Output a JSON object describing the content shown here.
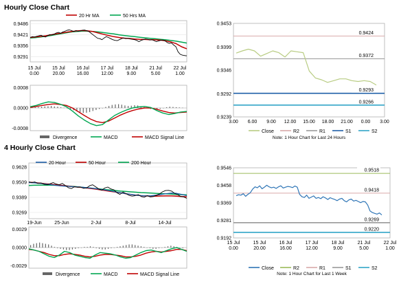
{
  "sections": [
    {
      "title": "Hourly Close Chart"
    },
    {
      "title": "4 Hourly Close Chart"
    }
  ],
  "colors": {
    "price_line": "#000000",
    "ma_red": "#c00000",
    "ma_green": "#00a651",
    "divergence": "#666666",
    "close_green": "#b8cc82",
    "close_blue": "#2e75b6",
    "r_line": "#d9a8a8",
    "r_line_alt": "#999999",
    "s1_blue": "#1f5fa8",
    "s2_blue": "#31a5c7",
    "r2_green": "#9bbb59"
  },
  "chart_data": [
    {
      "id": "hourly-price",
      "type": "line",
      "legend": [
        "20 Hr MA",
        "50 Hrs MA"
      ],
      "y_ticks": [
        "0.9486",
        "0.9421",
        "0.9356",
        "0.9291"
      ],
      "ylim": [
        0.926,
        0.9505
      ],
      "x_ticks": [
        [
          "15 Jul",
          "0.00"
        ],
        [
          "15 Jul",
          "20.00"
        ],
        [
          "16 Jul",
          "16.00"
        ],
        [
          "17 Jul",
          "12.00"
        ],
        [
          "18 Jul",
          "9.00"
        ],
        [
          "21 Jul",
          "5.00"
        ],
        [
          "22 Jul",
          "1.00"
        ]
      ],
      "series": [
        {
          "name": "Price",
          "values": [
            0.9405,
            0.941,
            0.9408,
            0.9412,
            0.9415,
            0.9418,
            0.9412,
            0.9408,
            0.9415,
            0.9422,
            0.942,
            0.9425,
            0.9432,
            0.9435,
            0.943,
            0.9438,
            0.9442,
            0.9448,
            0.945,
            0.9446,
            0.944,
            0.9446,
            0.9442,
            0.9444,
            0.9448,
            0.9449,
            0.9445,
            0.944,
            0.943,
            0.942,
            0.941,
            0.94,
            0.9398,
            0.9392,
            0.9402,
            0.941,
            0.9405,
            0.9398,
            0.9392,
            0.9388,
            0.9386,
            0.9392,
            0.9398,
            0.9402,
            0.9398,
            0.94,
            0.9396,
            0.9394,
            0.9392,
            0.9388,
            0.938,
            0.9388,
            0.9392,
            0.9396,
            0.9394,
            0.939,
            0.9392,
            0.9386,
            0.938,
            0.9384,
            0.9388,
            0.939,
            0.9385,
            0.9375,
            0.937,
            0.9372,
            0.936,
            0.935,
            0.932,
            0.9305,
            0.93,
            0.9298,
            0.9296
          ]
        },
        {
          "name": "20 Hr MA",
          "values": [
            0.9405,
            0.9408,
            0.9411,
            0.9415,
            0.9421,
            0.9426,
            0.9431,
            0.9437,
            0.9441,
            0.9444,
            0.9446,
            0.9444,
            0.944,
            0.9432,
            0.9424,
            0.9417,
            0.941,
            0.9405,
            0.9401,
            0.9399,
            0.9396,
            0.9394,
            0.9393,
            0.9392,
            0.9391,
            0.9389,
            0.9385,
            0.9378,
            0.9368,
            0.935,
            0.9338
          ]
        },
        {
          "name": "50 Hrs MA",
          "values": [
            0.9402,
            0.9404,
            0.9408,
            0.9412,
            0.9417,
            0.9422,
            0.9428,
            0.9433,
            0.9438,
            0.9441,
            0.9443,
            0.9443,
            0.9441,
            0.9438,
            0.9434,
            0.943,
            0.9426,
            0.9421,
            0.9417,
            0.9413,
            0.941,
            0.9406,
            0.9403,
            0.94,
            0.9397,
            0.9394,
            0.9391,
            0.9387,
            0.9383,
            0.9377,
            0.9372
          ]
        }
      ]
    },
    {
      "id": "hourly-macd",
      "type": "bar",
      "legend": [
        "Divergence",
        "MACD",
        "MACD Signal Line"
      ],
      "y_ticks": [
        "0.0008",
        "0.0000",
        "-0.0008"
      ],
      "ylim": [
        -0.0009,
        0.0009
      ],
      "series": [
        {
          "name": "Divergence",
          "values": [
            2e-05,
            3e-05,
            4e-05,
            5e-05,
            6e-05,
            7e-05,
            8e-05,
            6e-05,
            5e-05,
            3e-05,
            1e-05,
            -2e-05,
            -5e-05,
            -9e-05,
            -0.00013,
            -0.00017,
            -0.0002,
            -0.00019,
            -0.00016,
            -0.00012,
            -8e-05,
            -4e-05,
            0.0,
            4e-05,
            8e-05,
            0.00012,
            0.00014,
            0.00015,
            0.00013,
            0.0001,
            8e-05,
            9e-05,
            0.00011,
            0.0001,
            7e-05,
            3e-05,
            -1e-05,
            -4e-05,
            -6e-05,
            -5e-05,
            -3e-05,
            0.0,
            3e-05,
            5e-05,
            4e-05,
            3e-05,
            2e-05,
            1e-05
          ]
        },
        {
          "name": "MACD",
          "values": [
            5e-05,
            0.0001,
            0.00018,
            0.00024,
            0.00022,
            0.00015,
            5e-05,
            -0.00012,
            -0.00032,
            -0.00048,
            -0.00062,
            -0.0007,
            -0.00066,
            -0.00048,
            -0.0003,
            -0.00018,
            -8e-05,
            0.0,
            4e-05,
            6e-05,
            2e-05,
            -0.0001,
            -0.0002,
            -0.00026,
            -0.00022,
            -0.00016,
            -0.00014
          ]
        },
        {
          "name": "MACD Signal Line",
          "values": [
            2e-05,
            6e-05,
            0.0001,
            0.00014,
            0.00016,
            0.00014,
            0.0001,
            0.0,
            -0.00015,
            -0.0003,
            -0.00044,
            -0.00054,
            -0.00058,
            -0.00052,
            -0.0004,
            -0.00028,
            -0.00018,
            -0.0001,
            -4e-05,
            0.0,
            0.0,
            -5e-05,
            -0.00012,
            -0.00018,
            -0.0002,
            -0.00018,
            -0.00016
          ]
        }
      ]
    },
    {
      "id": "hourly-24h",
      "type": "line",
      "legend": [
        "Close",
        "R2",
        "R1",
        "S1",
        "S2"
      ],
      "note": "Note: 1 Hour Chart for Last 24 Hours",
      "y_ticks": [
        "0.9453",
        "0.9399",
        "0.9346",
        "0.9292",
        "0.9239"
      ],
      "ylim": [
        0.9239,
        0.9453
      ],
      "x_ticks": [
        "3.00",
        "6.00",
        "9.00",
        "12.00",
        "15.00",
        "18.00",
        "21.00",
        "0.00",
        "3.00"
      ],
      "levels": [
        {
          "name": "R2",
          "value": 0.9424,
          "label": "0.9424"
        },
        {
          "name": "R1",
          "value": 0.9372,
          "label": "0.9372"
        },
        {
          "name": "S1",
          "value": 0.9293,
          "label": "0.9293"
        },
        {
          "name": "S2",
          "value": 0.9266,
          "label": "0.9266"
        }
      ],
      "series": [
        {
          "name": "Close",
          "values": [
            0.9385,
            0.939,
            0.9394,
            0.939,
            0.9378,
            0.9384,
            0.939,
            0.9386,
            0.9376,
            0.939,
            0.9388,
            0.9386,
            0.9344,
            0.9328,
            0.9324,
            0.9318,
            0.9322,
            0.9326,
            0.9326,
            0.9322,
            0.932,
            0.9322,
            0.932,
            0.9312
          ]
        }
      ]
    },
    {
      "id": "four-hourly-price",
      "type": "line",
      "legend": [
        "20 Hour",
        "50 Hour",
        "200 Hour"
      ],
      "y_ticks": [
        "0.9628",
        "0.9509",
        "0.9389",
        "0.9269"
      ],
      "ylim": [
        0.922,
        0.966
      ],
      "x_ticks": [
        "19-Jun",
        "25-Jun",
        "2-Jul",
        "8-Jul",
        "14-Jul"
      ],
      "series": [
        {
          "name": "Price",
          "values": [
            0.951,
            0.9505,
            0.951,
            0.9498,
            0.9502,
            0.9492,
            0.9488,
            0.9496,
            0.9505,
            0.9494,
            0.9488,
            0.9498,
            0.9482,
            0.9465,
            0.9458,
            0.9472,
            0.9468,
            0.947,
            0.946,
            0.9462,
            0.948,
            0.9488,
            0.9472,
            0.9455,
            0.9445,
            0.9462,
            0.947,
            0.9455,
            0.9448,
            0.9425,
            0.9412,
            0.943,
            0.9418,
            0.9404,
            0.9398,
            0.9402,
            0.941,
            0.9395,
            0.939,
            0.9402,
            0.9392,
            0.9395,
            0.9405,
            0.9415,
            0.9432,
            0.9442,
            0.9444,
            0.9438,
            0.942,
            0.941,
            0.9395,
            0.9392,
            0.938
          ]
        },
        {
          "name": "20 Hour",
          "values": [
            0.9505,
            0.9503,
            0.95,
            0.9495,
            0.949,
            0.9485,
            0.948,
            0.9477,
            0.9475,
            0.9472,
            0.947,
            0.9466,
            0.9462,
            0.9458,
            0.9452,
            0.9446,
            0.944,
            0.9432,
            0.9425,
            0.9418,
            0.9412,
            0.9406,
            0.9402,
            0.94,
            0.9401,
            0.9406,
            0.9412,
            0.9418,
            0.9422,
            0.942,
            0.9412,
            0.9402
          ]
        },
        {
          "name": "50 Hour",
          "values": [
            0.9508,
            0.9505,
            0.9501,
            0.9497,
            0.9493,
            0.9489,
            0.9485,
            0.948,
            0.9476,
            0.9472,
            0.9468,
            0.9464,
            0.9459,
            0.9454,
            0.9448,
            0.9442,
            0.9436,
            0.943,
            0.9424,
            0.9418,
            0.9412,
            0.9406,
            0.9402,
            0.94,
            0.9398,
            0.9398,
            0.9399,
            0.94,
            0.94,
            0.9398,
            0.9395,
            0.9392
          ]
        },
        {
          "name": "200 Hour",
          "values": [
            0.9482,
            0.9484,
            0.9485,
            0.9485,
            0.9485,
            0.9484,
            0.9482,
            0.948,
            0.9477,
            0.9474,
            0.947,
            0.9466,
            0.9462,
            0.9458,
            0.9454,
            0.945,
            0.9446,
            0.9442,
            0.9438,
            0.9435,
            0.9432,
            0.9429,
            0.9426,
            0.9424,
            0.9422,
            0.942,
            0.9418,
            0.9416,
            0.9414,
            0.9412,
            0.941,
            0.9408
          ]
        }
      ]
    },
    {
      "id": "four-hourly-macd",
      "type": "bar",
      "legend": [
        "Divergence",
        "MACD",
        "MACD Signal Line"
      ],
      "y_ticks": [
        "0.0029",
        "0.0000",
        "-0.0029"
      ],
      "ylim": [
        -0.0033,
        0.0033
      ],
      "series": [
        {
          "name": "Divergence",
          "values": [
            0.0004,
            0.0006,
            0.0007,
            0.0008,
            0.0007,
            0.0006,
            0.0005,
            0.0003,
            0.0001,
            -0.0001,
            -0.0002,
            -0.0003,
            -0.0004,
            -0.0004,
            -0.0003,
            -0.0002,
            -0.0001,
            0.0,
            0.0001,
            0.0001,
            0.0002,
            0.0001,
            -0.0001,
            -0.0002,
            -0.0003,
            -0.0003,
            -0.0002,
            -0.0001,
            0.0,
            0.0001,
            0.0002,
            0.0003,
            0.0004,
            0.0005,
            0.0005,
            0.0004,
            0.0003,
            0.0002,
            0.0001,
            0.0,
            -0.0001,
            -0.0002,
            -0.0002,
            -0.0001,
            0.0,
            0.0001,
            0.0002,
            0.0003,
            0.0002,
            0.0001,
            0.0,
            -0.0001
          ]
        },
        {
          "name": "MACD",
          "values": [
            -0.0002,
            -0.0004,
            -0.0006,
            -0.001,
            -0.0014,
            -0.0016,
            -0.0012,
            -0.0006,
            -0.0008,
            -0.0012,
            -0.0014,
            -0.0016,
            -0.0017,
            -0.0012,
            -0.0008,
            -0.0009,
            -0.001,
            -0.0012,
            -0.0015,
            -0.0017,
            -0.0016,
            -0.0012,
            -0.0008,
            -0.0005,
            -0.0004,
            -0.0006,
            -0.0008,
            -0.0005,
            -0.0002,
            0.0,
            -0.0003,
            -0.0006
          ]
        },
        {
          "name": "MACD Signal Line",
          "values": [
            -0.0003,
            -0.0004,
            -0.0006,
            -0.0008,
            -0.0011,
            -0.0013,
            -0.0013,
            -0.0011,
            -0.001,
            -0.0011,
            -0.0012,
            -0.0014,
            -0.0015,
            -0.0014,
            -0.0012,
            -0.0011,
            -0.0011,
            -0.0012,
            -0.0013,
            -0.0015,
            -0.0015,
            -0.0014,
            -0.0012,
            -0.0009,
            -0.0007,
            -0.0006,
            -0.0007,
            -0.0006,
            -0.0005,
            -0.0003,
            -0.0003,
            -0.0005
          ]
        }
      ]
    },
    {
      "id": "weekly-hourly",
      "type": "line",
      "legend": [
        "Close",
        "R2",
        "R1",
        "S1",
        "S2"
      ],
      "note": "Note: 1 Hour Chart for Last 1 Week",
      "y_ticks": [
        "0.9546",
        "0.9458",
        "0.9369",
        "0.9281",
        "0.9192"
      ],
      "ylim": [
        0.9192,
        0.9546
      ],
      "x_ticks": [
        [
          "15 Jul",
          "0.00"
        ],
        [
          "15 Jul",
          "20.00"
        ],
        [
          "16 Jul",
          "16.00"
        ],
        [
          "17 Jul",
          "12.00"
        ],
        [
          "18 Jul",
          "9.00"
        ],
        [
          "21 Jul",
          "5.00"
        ],
        [
          "22 Jul",
          "1.00"
        ]
      ],
      "levels": [
        {
          "name": "R2",
          "value": 0.9518,
          "label": "0.9518"
        },
        {
          "name": "R1",
          "value": 0.9418,
          "label": "0.9418"
        },
        {
          "name": "S1",
          "value": 0.9269,
          "label": "0.9269"
        },
        {
          "name": "S2",
          "value": 0.922,
          "label": "0.9220"
        }
      ],
      "series": [
        {
          "name": "Close",
          "values": [
            0.9405,
            0.941,
            0.9408,
            0.9415,
            0.9402,
            0.9412,
            0.942,
            0.9438,
            0.945,
            0.9445,
            0.9455,
            0.944,
            0.9448,
            0.9458,
            0.945,
            0.9445,
            0.9448,
            0.9442,
            0.945,
            0.9455,
            0.9444,
            0.9448,
            0.9452,
            0.945,
            0.9446,
            0.9454,
            0.9448,
            0.9412,
            0.94,
            0.9396,
            0.9408,
            0.9392,
            0.9398,
            0.9404,
            0.9392,
            0.9396,
            0.939,
            0.94,
            0.9394,
            0.9386,
            0.9395,
            0.939,
            0.9386,
            0.938,
            0.9388,
            0.9392,
            0.938,
            0.9374,
            0.9384,
            0.9388,
            0.9378,
            0.9382,
            0.9376,
            0.937,
            0.9376,
            0.9374,
            0.9358,
            0.9328,
            0.932,
            0.9316,
            0.9312,
            0.9318,
            0.9308
          ]
        }
      ]
    }
  ]
}
